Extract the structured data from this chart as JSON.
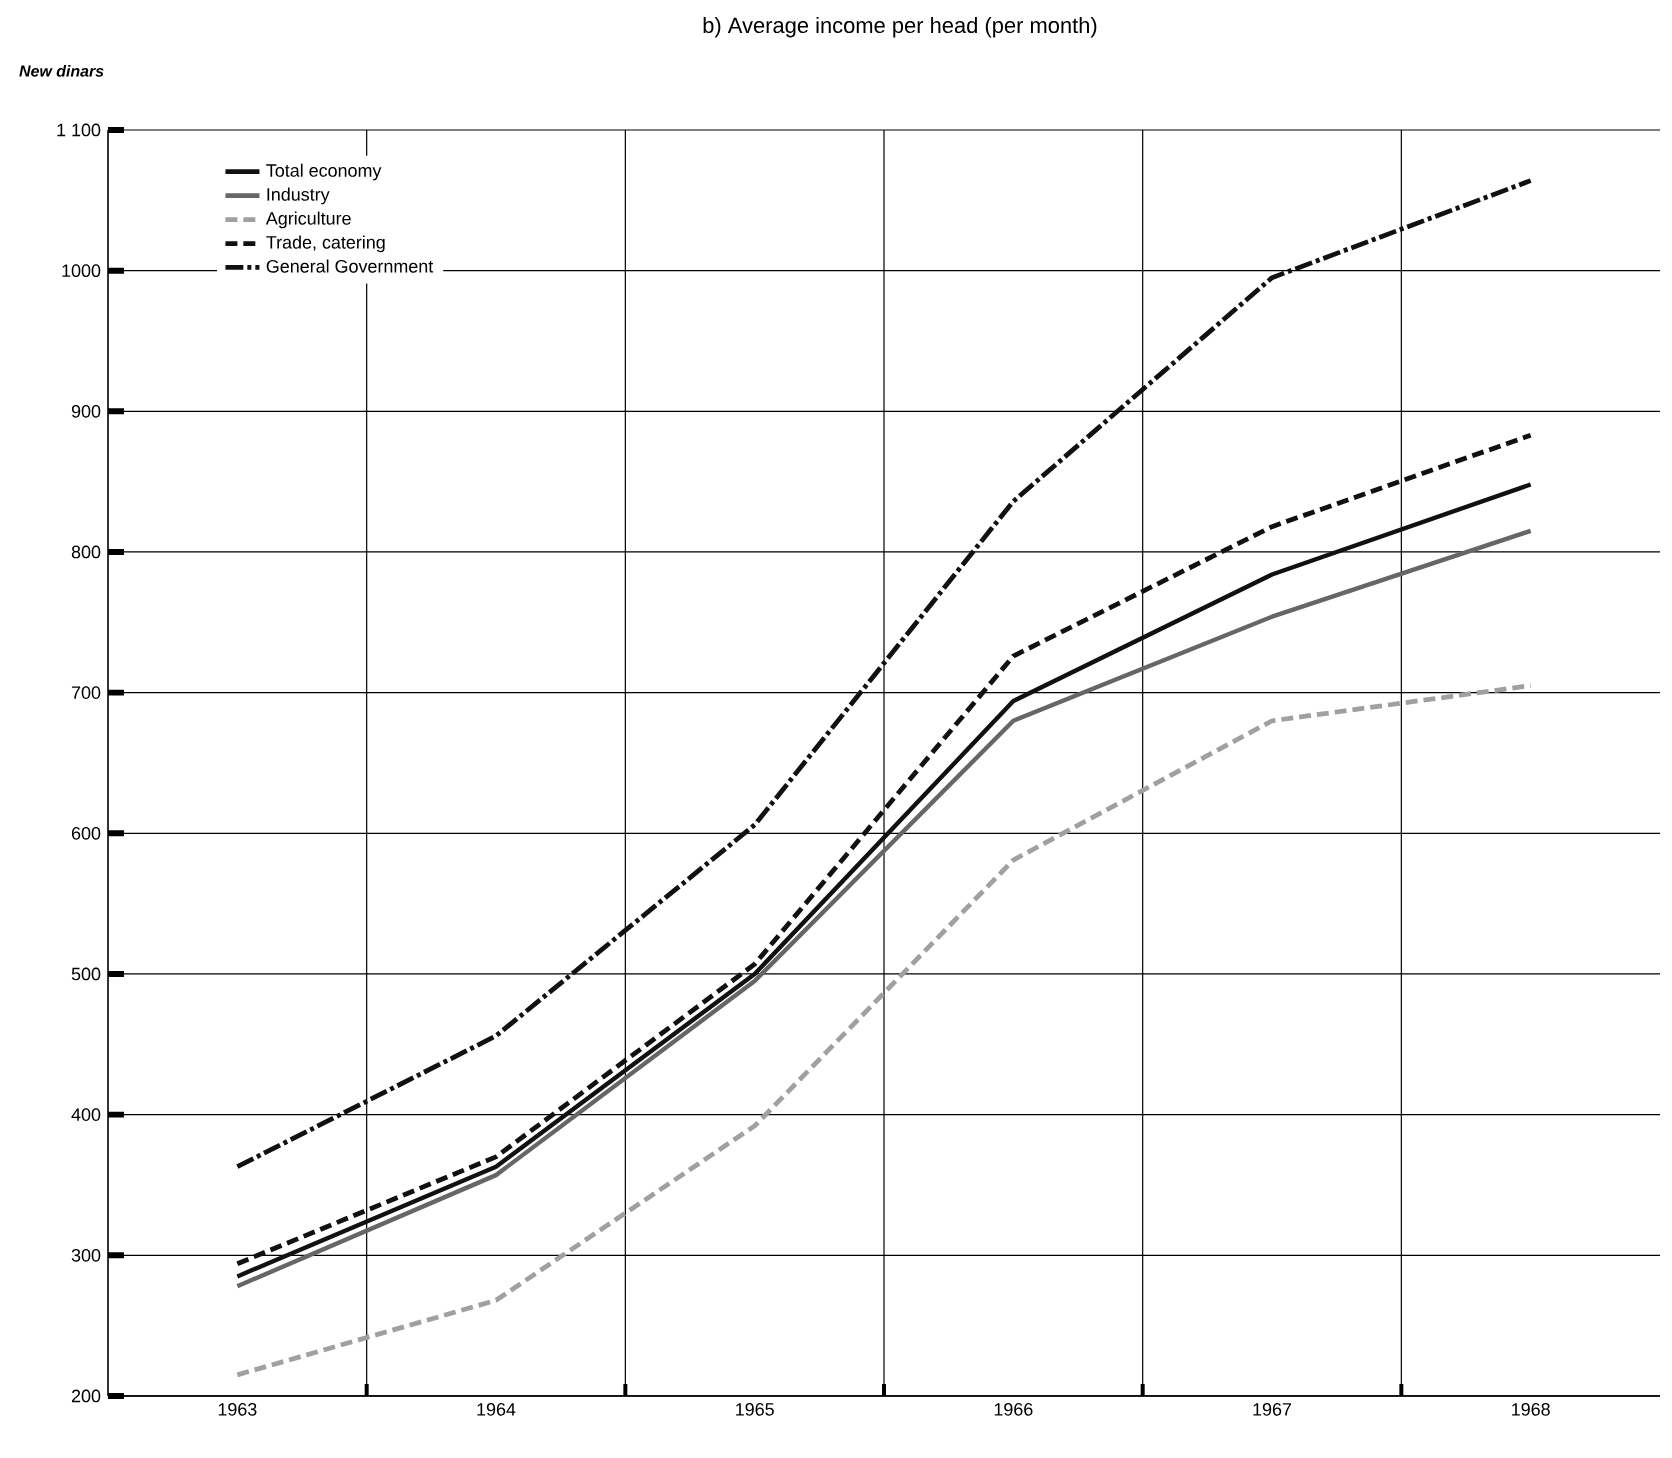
{
  "chart_data": {
    "type": "line",
    "title": "b)  Average income per head (per month)",
    "ylabel": "New dinars",
    "categories": [
      "1963",
      "1964",
      "1965",
      "1966",
      "1967",
      "1968"
    ],
    "ylim": [
      200,
      1100
    ],
    "yticks": [
      200,
      300,
      400,
      500,
      600,
      700,
      800,
      900,
      1000,
      {
        "value": 1100,
        "label": "1 100"
      }
    ],
    "grid": true,
    "legend": "top left",
    "marker": "none",
    "series": [
      {
        "name": "Total economy",
        "color": "#111111",
        "line_style": "solid",
        "values": [
          285,
          363,
          500,
          694,
          784,
          848
        ]
      },
      {
        "name": "Industry",
        "color": "#666666",
        "line_style": "solid",
        "values": [
          278,
          357,
          495,
          680,
          754,
          815
        ]
      },
      {
        "name": "Agriculture",
        "color": "#a0a0a0",
        "line_style": "dashed",
        "values": [
          215,
          268,
          392,
          581,
          680,
          705
        ]
      },
      {
        "name": "Trade, catering",
        "color": "#111111",
        "line_style": "dashed",
        "values": [
          294,
          370,
          507,
          726,
          818,
          883
        ]
      },
      {
        "name": "General Government",
        "color": "#111111",
        "line_style": "dashdot",
        "values": [
          363,
          456,
          606,
          836,
          995,
          1064
        ]
      }
    ]
  }
}
